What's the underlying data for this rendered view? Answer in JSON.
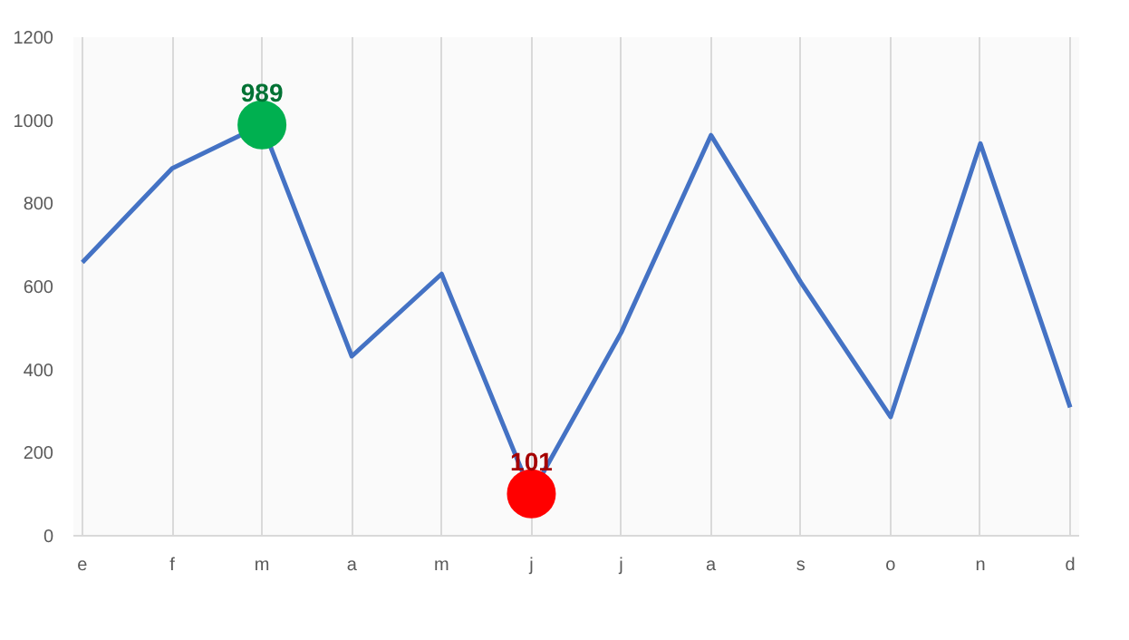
{
  "chart_data": {
    "type": "line",
    "categories": [
      "e",
      "f",
      "m",
      "a",
      "m",
      "j",
      "j",
      "a",
      "s",
      "o",
      "n",
      "d"
    ],
    "series": [
      {
        "color": "#4472c4",
        "marker": "none",
        "values": [
          658,
          884,
          989,
          432,
          630,
          101,
          489,
          964,
          610,
          286,
          944,
          309
        ]
      },
      {
        "type": "scatter",
        "marker": "circle",
        "color": "#00b050",
        "values": [
          null,
          null,
          989,
          null,
          null,
          null,
          null,
          null,
          null,
          null,
          null,
          null
        ],
        "value_labels": [
          null,
          null,
          "989",
          null,
          null,
          null,
          null,
          null,
          null,
          null,
          null,
          null
        ]
      },
      {
        "type": "scatter",
        "marker": "circle",
        "color": "#ff0000",
        "values": [
          null,
          null,
          null,
          null,
          null,
          101,
          null,
          null,
          null,
          null,
          null,
          null
        ],
        "value_labels": [
          null,
          null,
          null,
          null,
          null,
          "101",
          null,
          null,
          null,
          null,
          null,
          null
        ]
      }
    ],
    "ylim": [
      0,
      1200
    ],
    "yticks": [
      0,
      200,
      400,
      600,
      800,
      1000,
      1200
    ],
    "grid": "x",
    "line_style": "solid"
  }
}
